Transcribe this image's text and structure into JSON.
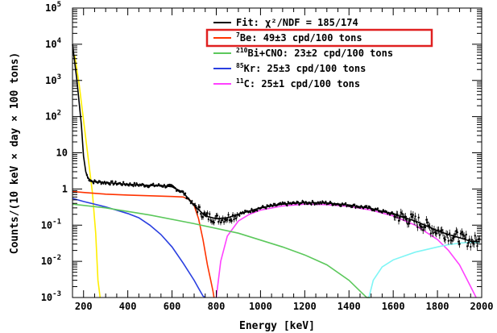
{
  "chart_data": {
    "type": "line",
    "xlabel": "Energy [keV]",
    "ylabel": "Counts/(10 keV × day × 100 tons)",
    "xlim": [
      150,
      2000
    ],
    "ylim": [
      0.001,
      100000
    ],
    "yscale": "log",
    "xticks": [
      "200",
      "400",
      "600",
      "800",
      "1000",
      "1200",
      "1400",
      "1600",
      "1800",
      "2000"
    ],
    "yticks": [
      {
        "base": "10",
        "exp": "-3"
      },
      {
        "base": "10",
        "exp": "-2"
      },
      {
        "base": "10",
        "exp": "-1"
      },
      {
        "base": "1",
        "exp": ""
      },
      {
        "base": "10",
        "exp": ""
      },
      {
        "base": "10",
        "exp": "2"
      },
      {
        "base": "10",
        "exp": "3"
      },
      {
        "base": "10",
        "exp": "4"
      },
      {
        "base": "10",
        "exp": "5"
      }
    ],
    "legend": {
      "placement": "top-right",
      "entries": [
        {
          "sup": "",
          "text": "Fit: χ²/NDF = 185/174",
          "color": "#000000",
          "highlight": false
        },
        {
          "sup": "7",
          "text": "Be: 49±3 cpd/100 tons",
          "color": "#ff3300",
          "highlight": true
        },
        {
          "sup": "210",
          "text": "Bi+CNO: 23±2 cpd/100 tons",
          "color": "#5cc85c",
          "highlight": false
        },
        {
          "sup": "85",
          "text": "Kr: 25±3 cpd/100 tons",
          "color": "#2a3fe0",
          "highlight": false
        },
        {
          "sup": "11",
          "text": "C: 25±1 cpd/100 tons",
          "color": "#ff40ff",
          "highlight": false
        }
      ]
    },
    "highlight_color": "#e02020",
    "series": [
      {
        "key": "210po",
        "color": "#ffee00",
        "x": [
          160,
          180,
          200,
          220,
          240,
          255,
          265,
          275
        ],
        "y": [
          5000,
          800,
          80,
          8,
          0.8,
          0.06,
          0.003,
          0.001
        ]
      },
      {
        "key": "c11",
        "color": "#ff40ff",
        "x": [
          800,
          820,
          850,
          900,
          950,
          1000,
          1100,
          1200,
          1300,
          1400,
          1500,
          1600,
          1700,
          1800,
          1850,
          1900,
          1950,
          1975
        ],
        "y": [
          0.001,
          0.01,
          0.05,
          0.13,
          0.2,
          0.26,
          0.34,
          0.38,
          0.37,
          0.33,
          0.26,
          0.18,
          0.1,
          0.04,
          0.02,
          0.008,
          0.002,
          0.001
        ]
      },
      {
        "key": "c11_tail",
        "color": "#7ff5f5",
        "x": [
          1490,
          1510,
          1550,
          1600,
          1700,
          1800,
          1850,
          1900,
          1950,
          1990
        ],
        "y": [
          0.001,
          0.003,
          0.007,
          0.011,
          0.018,
          0.025,
          0.029,
          0.032,
          0.034,
          0.033
        ]
      },
      {
        "key": "be7",
        "color": "#ff3300",
        "x": [
          150,
          200,
          300,
          400,
          500,
          600,
          650,
          680,
          700,
          720,
          740,
          760,
          775,
          785,
          790
        ],
        "y": [
          0.85,
          0.8,
          0.72,
          0.68,
          0.65,
          0.62,
          0.6,
          0.5,
          0.35,
          0.15,
          0.04,
          0.008,
          0.003,
          0.0015,
          0.001
        ]
      },
      {
        "key": "kr85",
        "color": "#2a3fe0",
        "x": [
          150,
          200,
          300,
          400,
          450,
          500,
          550,
          600,
          650,
          700,
          720,
          740,
          750
        ],
        "y": [
          0.55,
          0.45,
          0.32,
          0.21,
          0.16,
          0.1,
          0.055,
          0.025,
          0.009,
          0.003,
          0.0018,
          0.0011,
          0.001
        ]
      },
      {
        "key": "bi210cno",
        "color": "#5cc85c",
        "x": [
          150,
          300,
          500,
          700,
          900,
          1100,
          1200,
          1300,
          1400,
          1450,
          1480,
          1495
        ],
        "y": [
          0.38,
          0.3,
          0.19,
          0.11,
          0.06,
          0.025,
          0.015,
          0.008,
          0.003,
          0.0015,
          0.001,
          0.001
        ]
      },
      {
        "key": "fit",
        "color": "#000000",
        "x": [
          150,
          170,
          190,
          200,
          210,
          220,
          240,
          300,
          400,
          500,
          550,
          600,
          650,
          700,
          750,
          800,
          850,
          900,
          1000,
          1100,
          1200,
          1300,
          1400,
          1500,
          1600,
          1700,
          1800,
          1850,
          1900,
          1950,
          1990
        ],
        "y": [
          10000,
          1000,
          60,
          8,
          3,
          2,
          1.6,
          1.5,
          1.35,
          1.25,
          1.25,
          1.15,
          0.8,
          0.35,
          0.18,
          0.15,
          0.16,
          0.2,
          0.3,
          0.38,
          0.42,
          0.41,
          0.36,
          0.29,
          0.2,
          0.13,
          0.07,
          0.055,
          0.045,
          0.036,
          0.035
        ]
      }
    ]
  }
}
